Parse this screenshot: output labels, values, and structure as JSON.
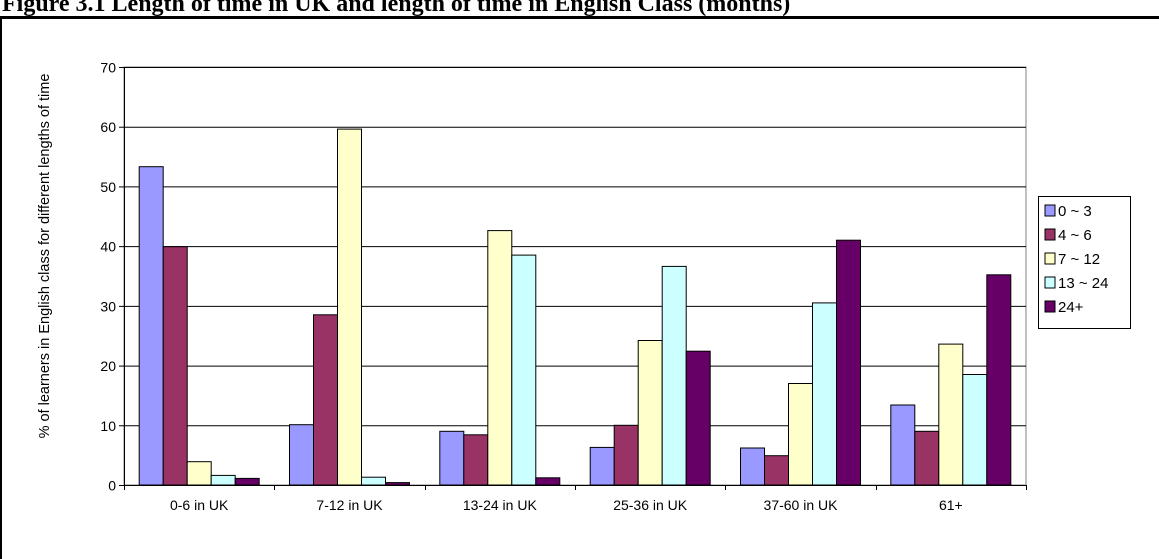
{
  "figure": {
    "title": "Figure 3.1 Length of time in UK and length of time in English Class (months)"
  },
  "chart_data": {
    "type": "bar",
    "title": "",
    "xlabel": "",
    "ylabel": "% of learners in English class for different lengths of time",
    "ylim": [
      0,
      70
    ],
    "yticks": [
      "0",
      "10",
      "20",
      "30",
      "40",
      "50",
      "60",
      "70"
    ],
    "grid": true,
    "legend_position": "right",
    "categories": [
      "0-6 in UK",
      "7-12 in UK",
      "13-24 in UK",
      "25-36 in UK",
      "37-60 in UK",
      "61+"
    ],
    "series": [
      {
        "name": "0  ~ 3",
        "color": "#9999FF",
        "values": [
          53.3,
          10.1,
          9.0,
          6.3,
          6.2,
          13.4
        ]
      },
      {
        "name": "4 ~ 6",
        "color": "#993366",
        "values": [
          39.9,
          28.5,
          8.4,
          10.0,
          4.9,
          9.0
        ]
      },
      {
        "name": "7 ~ 12",
        "color": "#FFFFCC",
        "values": [
          3.9,
          59.6,
          42.6,
          24.2,
          17.0,
          23.6
        ]
      },
      {
        "name": "13 ~ 24",
        "color": "#CCFFFF",
        "values": [
          1.6,
          1.3,
          38.5,
          36.6,
          30.5,
          18.5
        ]
      },
      {
        "name": "24+",
        "color": "#660066",
        "values": [
          1.1,
          0.4,
          1.2,
          22.4,
          41.0,
          35.2
        ]
      }
    ]
  }
}
